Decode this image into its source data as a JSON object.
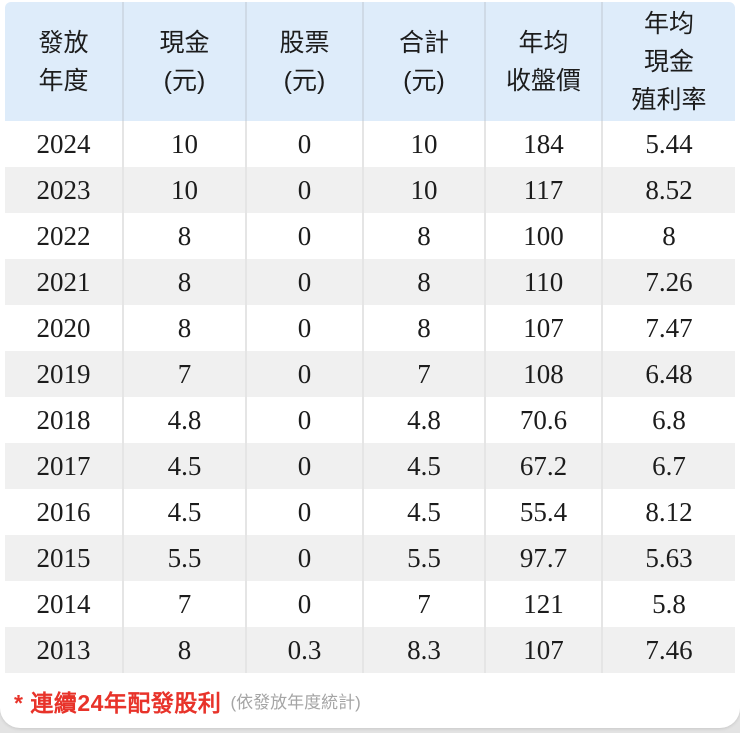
{
  "table": {
    "columns": [
      {
        "id": "year",
        "label": "發放\n年度"
      },
      {
        "id": "cash",
        "label": "現金\n(元)"
      },
      {
        "id": "stock",
        "label": "股票\n(元)"
      },
      {
        "id": "total",
        "label": "合計\n(元)"
      },
      {
        "id": "avg-close",
        "label": "年均\n收盤價"
      },
      {
        "id": "avg-cash-yield",
        "label": "年均\n現金\n殖利率"
      }
    ],
    "rows": [
      [
        "2024",
        "10",
        "0",
        "10",
        "184",
        "5.44"
      ],
      [
        "2023",
        "10",
        "0",
        "10",
        "117",
        "8.52"
      ],
      [
        "2022",
        "8",
        "0",
        "8",
        "100",
        "8"
      ],
      [
        "2021",
        "8",
        "0",
        "8",
        "110",
        "7.26"
      ],
      [
        "2020",
        "8",
        "0",
        "8",
        "107",
        "7.47"
      ],
      [
        "2019",
        "7",
        "0",
        "7",
        "108",
        "6.48"
      ],
      [
        "2018",
        "4.8",
        "0",
        "4.8",
        "70.6",
        "6.8"
      ],
      [
        "2017",
        "4.5",
        "0",
        "4.5",
        "67.2",
        "6.7"
      ],
      [
        "2016",
        "4.5",
        "0",
        "4.5",
        "55.4",
        "8.12"
      ],
      [
        "2015",
        "5.5",
        "0",
        "5.5",
        "97.7",
        "5.63"
      ],
      [
        "2014",
        "7",
        "0",
        "7",
        "121",
        "5.8"
      ],
      [
        "2013",
        "8",
        "0.3",
        "8.3",
        "107",
        "7.46"
      ]
    ]
  },
  "footnote": {
    "highlight": "* 連續24年配發股利",
    "detail": "(依發放年度統計)"
  },
  "colors": {
    "header_bg": "#deecfa",
    "row_alt_bg": "#f0f0f0",
    "note_red": "#e8332a",
    "note_gray": "#a5a5a5",
    "page_bg": "#e3e3e3",
    "text": "#1c1c1c"
  }
}
